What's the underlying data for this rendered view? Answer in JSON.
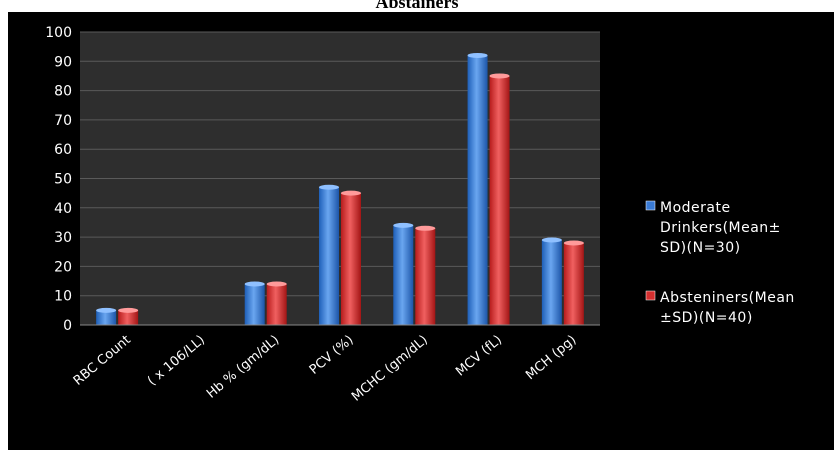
{
  "chart_data": {
    "type": "bar",
    "title": "Abstainers",
    "xlabel": "",
    "ylabel": "",
    "ylim": [
      0,
      100
    ],
    "yticks": [
      0,
      10,
      20,
      30,
      40,
      50,
      60,
      70,
      80,
      90,
      100
    ],
    "grid": true,
    "legend_position": "right",
    "categories": [
      "RBC Count",
      "( x 106/LL)",
      "Hb % (gm/dL)",
      "PCV (%)",
      "MCHC (gm/dL)",
      "MCV (fL)",
      "MCH (pg)"
    ],
    "series": [
      {
        "name": "Moderate Drinkers(Mean± SD)(N=30)",
        "legend_lines": [
          "Moderate",
          "Drinkers(Mean±",
          "SD)(N=30)"
        ],
        "color": "#3a7bd5",
        "values": [
          5,
          null,
          14,
          47,
          34,
          92,
          29
        ]
      },
      {
        "name": "Absteniners(Mean ±SD)(N=40)",
        "legend_lines": [
          "Absteniners(Mean",
          "±SD)(N=40)"
        ],
        "color": "#d32f2f",
        "values": [
          5,
          null,
          14,
          45,
          33,
          85,
          28
        ]
      }
    ]
  }
}
